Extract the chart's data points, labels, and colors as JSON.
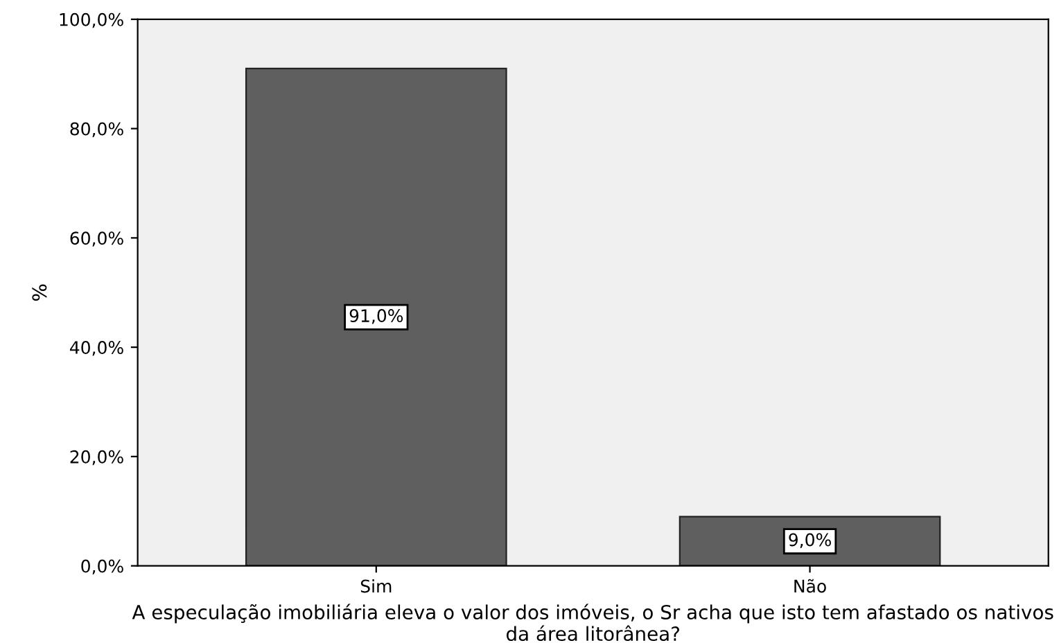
{
  "chart_data": {
    "type": "bar",
    "xlabel": "A especulação imobiliária eleva o valor dos imóveis, o Sr acha que isto tem afastado os nativos da área litorânea?",
    "ylabel": "%",
    "categories": [
      "Sim",
      "Não"
    ],
    "values": [
      91.0,
      9.0
    ],
    "color": "#5f5f5f",
    "value_labels": [
      "91,0%",
      "9,0%"
    ],
    "ylim": [
      0,
      100
    ],
    "yticks": [
      {
        "value": 0,
        "label": "0,0%"
      },
      {
        "value": 20,
        "label": "20,0%"
      },
      {
        "value": 40,
        "label": "40,0%"
      },
      {
        "value": 60,
        "label": "60,0%"
      },
      {
        "value": 80,
        "label": "80,0%"
      },
      {
        "value": 100,
        "label": "100,0%"
      }
    ],
    "grid": false
  }
}
